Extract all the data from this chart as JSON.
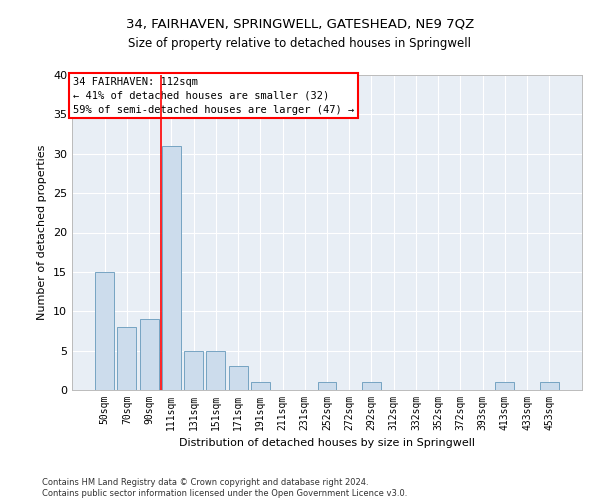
{
  "title": "34, FAIRHAVEN, SPRINGWELL, GATESHEAD, NE9 7QZ",
  "subtitle": "Size of property relative to detached houses in Springwell",
  "xlabel": "Distribution of detached houses by size in Springwell",
  "ylabel": "Number of detached properties",
  "bar_color": "#ccdcec",
  "bar_edge_color": "#6699bb",
  "background_color": "#e8eef5",
  "categories": [
    "50sqm",
    "70sqm",
    "90sqm",
    "111sqm",
    "131sqm",
    "151sqm",
    "171sqm",
    "191sqm",
    "211sqm",
    "231sqm",
    "252sqm",
    "272sqm",
    "292sqm",
    "312sqm",
    "332sqm",
    "352sqm",
    "372sqm",
    "393sqm",
    "413sqm",
    "433sqm",
    "453sqm"
  ],
  "values": [
    15,
    8,
    9,
    31,
    5,
    5,
    3,
    1,
    0,
    0,
    1,
    0,
    1,
    0,
    0,
    0,
    0,
    0,
    1,
    0,
    1
  ],
  "annotation_text_line1": "34 FAIRHAVEN: 112sqm",
  "annotation_text_line2": "← 41% of detached houses are smaller (32)",
  "annotation_text_line3": "59% of semi-detached houses are larger (47) →",
  "annotation_box_color": "white",
  "annotation_border_color": "red",
  "vline_color": "red",
  "vline_x": 2.55,
  "ylim": [
    0,
    40
  ],
  "yticks": [
    0,
    5,
    10,
    15,
    20,
    25,
    30,
    35,
    40
  ],
  "footer_line1": "Contains HM Land Registry data © Crown copyright and database right 2024.",
  "footer_line2": "Contains public sector information licensed under the Open Government Licence v3.0."
}
